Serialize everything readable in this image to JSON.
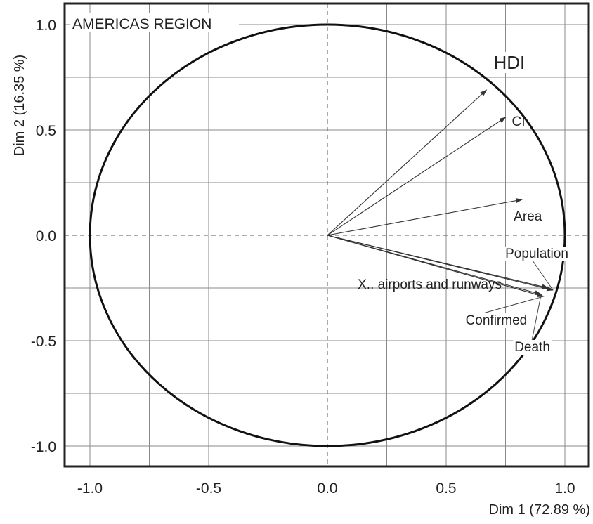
{
  "chart_data": {
    "type": "scatter",
    "subtype": "pca-variable-correlation-circle",
    "title": "AMERICAS REGION",
    "xlabel": "Dim 1 (72.89 %)",
    "ylabel": "Dim 2 (16.35 %)",
    "xlim": [
      -1.1,
      1.1
    ],
    "ylim": [
      -1.1,
      1.1
    ],
    "xticks": [
      "-1.0",
      "-0.5",
      "0.0",
      "0.5",
      "1.0"
    ],
    "yticks": [
      "1.0",
      "0.5",
      "0.0",
      "-0.5",
      "-1.0"
    ],
    "grid": true,
    "unit_circle": true,
    "vectors": [
      {
        "name": "HDI",
        "x": 0.67,
        "y": 0.69
      },
      {
        "name": "CI",
        "x": 0.75,
        "y": 0.56
      },
      {
        "name": "Area",
        "x": 0.82,
        "y": 0.17
      },
      {
        "name": "Population",
        "x": 0.95,
        "y": -0.26
      },
      {
        "name": "X.. airports and runways",
        "x": 0.93,
        "y": -0.25
      },
      {
        "name": "Confirmed",
        "x": 0.91,
        "y": -0.29
      },
      {
        "name": "Death",
        "x": 0.9,
        "y": -0.28
      }
    ]
  }
}
